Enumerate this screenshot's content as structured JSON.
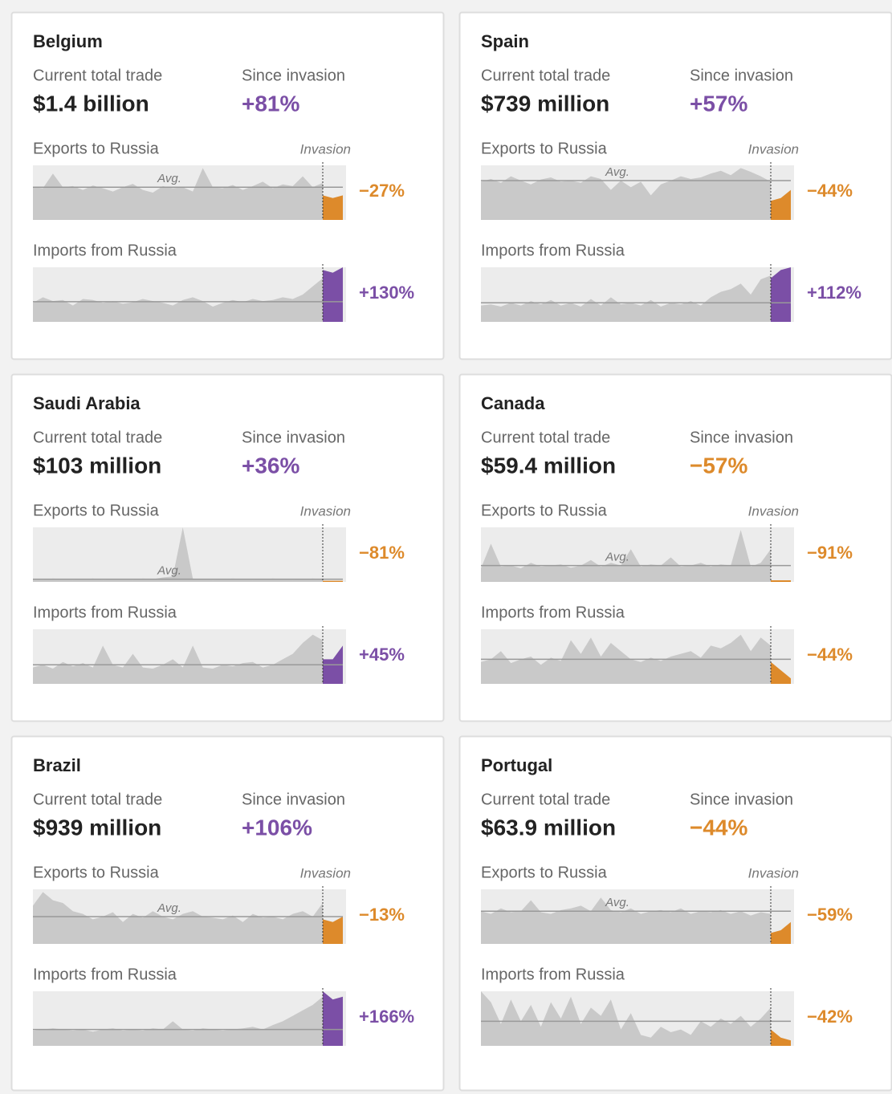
{
  "spark_ylim": [
    0,
    100
  ],
  "cards": [
    {
      "name": "Belgium",
      "total_label": "Current total trade",
      "total": "$1.4 billion",
      "since_label": "Since invasion",
      "since": "+81%",
      "since_color": "#7b4fa6",
      "exports": {
        "label": "Exports to Russia",
        "invasion_label": "Invasion",
        "avg_label": "Avg.",
        "change": "−27%",
        "color": "#dd8a2b",
        "avg": 60,
        "before": [
          60,
          58,
          85,
          60,
          62,
          55,
          63,
          58,
          52,
          60,
          66,
          55,
          50,
          62,
          58,
          60,
          52,
          95,
          60,
          58,
          64,
          55,
          62,
          70,
          58,
          65,
          62,
          80,
          60,
          68
        ],
        "after": [
          45,
          40,
          45
        ]
      },
      "imports": {
        "label": "Imports from Russia",
        "change": "+130%",
        "color": "#7b4fa6",
        "avg": 37,
        "before": [
          35,
          45,
          38,
          40,
          30,
          42,
          40,
          35,
          38,
          33,
          36,
          42,
          38,
          35,
          30,
          40,
          45,
          38,
          28,
          35,
          40,
          36,
          42,
          38,
          40,
          45,
          42,
          50,
          65,
          80
        ],
        "after": [
          95,
          90,
          100
        ]
      }
    },
    {
      "name": "Spain",
      "total_label": "Current total trade",
      "total": "$739 million",
      "since_label": "Since invasion",
      "since": "+57%",
      "since_color": "#7b4fa6",
      "exports": {
        "label": "Exports to Russia",
        "invasion_label": "Invasion",
        "avg_label": "Avg.",
        "change": "−44%",
        "color": "#dd8a2b",
        "avg": 72,
        "before": [
          70,
          75,
          68,
          80,
          72,
          65,
          74,
          78,
          70,
          72,
          68,
          80,
          75,
          55,
          72,
          60,
          70,
          45,
          65,
          72,
          80,
          75,
          78,
          85,
          90,
          82,
          95,
          88,
          80,
          70
        ],
        "after": [
          35,
          40,
          55
        ]
      },
      "imports": {
        "label": "Imports from Russia",
        "change": "+112%",
        "color": "#7b4fa6",
        "avg": 35,
        "before": [
          30,
          32,
          28,
          35,
          30,
          38,
          32,
          40,
          30,
          35,
          28,
          42,
          30,
          45,
          32,
          35,
          30,
          40,
          28,
          35,
          32,
          38,
          30,
          45,
          55,
          60,
          70,
          50,
          78,
          85
        ],
        "after": [
          80,
          95,
          100
        ]
      }
    },
    {
      "name": "Saudi Arabia",
      "total_label": "Current total trade",
      "total": "$103 million",
      "since_label": "Since invasion",
      "since": "+36%",
      "since_color": "#7b4fa6",
      "exports": {
        "label": "Exports to Russia",
        "invasion_label": "Invasion",
        "avg_label": "Avg.",
        "change": "−81%",
        "color": "#dd8a2b",
        "avg": 5,
        "before": [
          5,
          4,
          6,
          5,
          4,
          5,
          6,
          4,
          5,
          5,
          4,
          6,
          5,
          8,
          10,
          100,
          6,
          5,
          4,
          5,
          6,
          5,
          4,
          5,
          6,
          5,
          4,
          5,
          6,
          5
        ],
        "after": [
          2,
          2,
          2
        ]
      },
      "imports": {
        "label": "Imports from Russia",
        "change": "+45%",
        "color": "#7b4fa6",
        "avg": 35,
        "before": [
          30,
          35,
          28,
          40,
          32,
          38,
          30,
          70,
          35,
          30,
          55,
          30,
          28,
          35,
          45,
          30,
          70,
          30,
          28,
          35,
          32,
          38,
          40,
          30,
          35,
          45,
          55,
          75,
          90,
          80
        ],
        "after": [
          45,
          45,
          70
        ]
      }
    },
    {
      "name": "Canada",
      "total_label": "Current total trade",
      "total": "$59.4 million",
      "since_label": "Since invasion",
      "since": "−57%",
      "since_color": "#dd8a2b",
      "exports": {
        "label": "Exports to Russia",
        "invasion_label": "Invasion",
        "avg_label": "Avg.",
        "change": "−91%",
        "color": "#dd8a2b",
        "avg": 30,
        "before": [
          25,
          70,
          28,
          30,
          25,
          35,
          28,
          30,
          32,
          26,
          30,
          40,
          28,
          35,
          30,
          60,
          28,
          32,
          30,
          45,
          28,
          30,
          35,
          28,
          32,
          30,
          95,
          28,
          35,
          60
        ],
        "after": [
          3,
          3,
          3
        ]
      },
      "imports": {
        "label": "Imports from Russia",
        "change": "−44%",
        "color": "#dd8a2b",
        "avg": 45,
        "before": [
          40,
          45,
          60,
          38,
          45,
          50,
          35,
          48,
          42,
          80,
          55,
          85,
          50,
          75,
          60,
          45,
          40,
          48,
          42,
          50,
          55,
          60,
          48,
          70,
          65,
          75,
          90,
          60,
          85,
          70
        ],
        "after": [
          40,
          25,
          10
        ]
      }
    },
    {
      "name": "Brazil",
      "total_label": "Current total trade",
      "total": "$939 million",
      "since_label": "Since invasion",
      "since": "+106%",
      "since_color": "#7b4fa6",
      "exports": {
        "label": "Exports to Russia",
        "invasion_label": "Invasion",
        "avg_label": "Avg.",
        "change": "−13%",
        "color": "#dd8a2b",
        "avg": 50,
        "before": [
          70,
          95,
          80,
          75,
          60,
          55,
          45,
          50,
          58,
          40,
          55,
          48,
          60,
          50,
          45,
          55,
          60,
          50,
          48,
          45,
          52,
          40,
          55,
          48,
          50,
          45,
          55,
          60,
          50,
          75
        ],
        "after": [
          45,
          40,
          50
        ]
      },
      "imports": {
        "label": "Imports from Russia",
        "change": "+166%",
        "color": "#7b4fa6",
        "avg": 30,
        "before": [
          28,
          30,
          32,
          30,
          28,
          30,
          26,
          30,
          32,
          28,
          30,
          28,
          32,
          30,
          45,
          30,
          28,
          32,
          30,
          28,
          30,
          32,
          35,
          30,
          38,
          45,
          55,
          65,
          75,
          90
        ],
        "after": [
          100,
          85,
          90
        ]
      }
    },
    {
      "name": "Portugal",
      "total_label": "Current total trade",
      "total": "$63.9 million",
      "since_label": "Since invasion",
      "since": "−44%",
      "since_color": "#dd8a2b",
      "exports": {
        "label": "Exports to Russia",
        "invasion_label": "Invasion",
        "avg_label": "Avg.",
        "change": "−59%",
        "color": "#dd8a2b",
        "avg": 60,
        "before": [
          60,
          55,
          65,
          58,
          60,
          80,
          58,
          55,
          62,
          65,
          70,
          60,
          85,
          62,
          58,
          65,
          55,
          60,
          62,
          58,
          65,
          55,
          60,
          58,
          62,
          55,
          60,
          52,
          58,
          55
        ],
        "after": [
          20,
          25,
          40
        ]
      },
      "imports": {
        "label": "Imports from Russia",
        "change": "−42%",
        "color": "#dd8a2b",
        "avg": 45,
        "before": [
          100,
          80,
          40,
          85,
          45,
          75,
          35,
          80,
          50,
          90,
          40,
          70,
          55,
          85,
          30,
          60,
          20,
          15,
          35,
          25,
          30,
          20,
          45,
          35,
          50,
          40,
          55,
          35,
          50,
          70
        ],
        "after": [
          30,
          15,
          10
        ]
      }
    }
  ]
}
